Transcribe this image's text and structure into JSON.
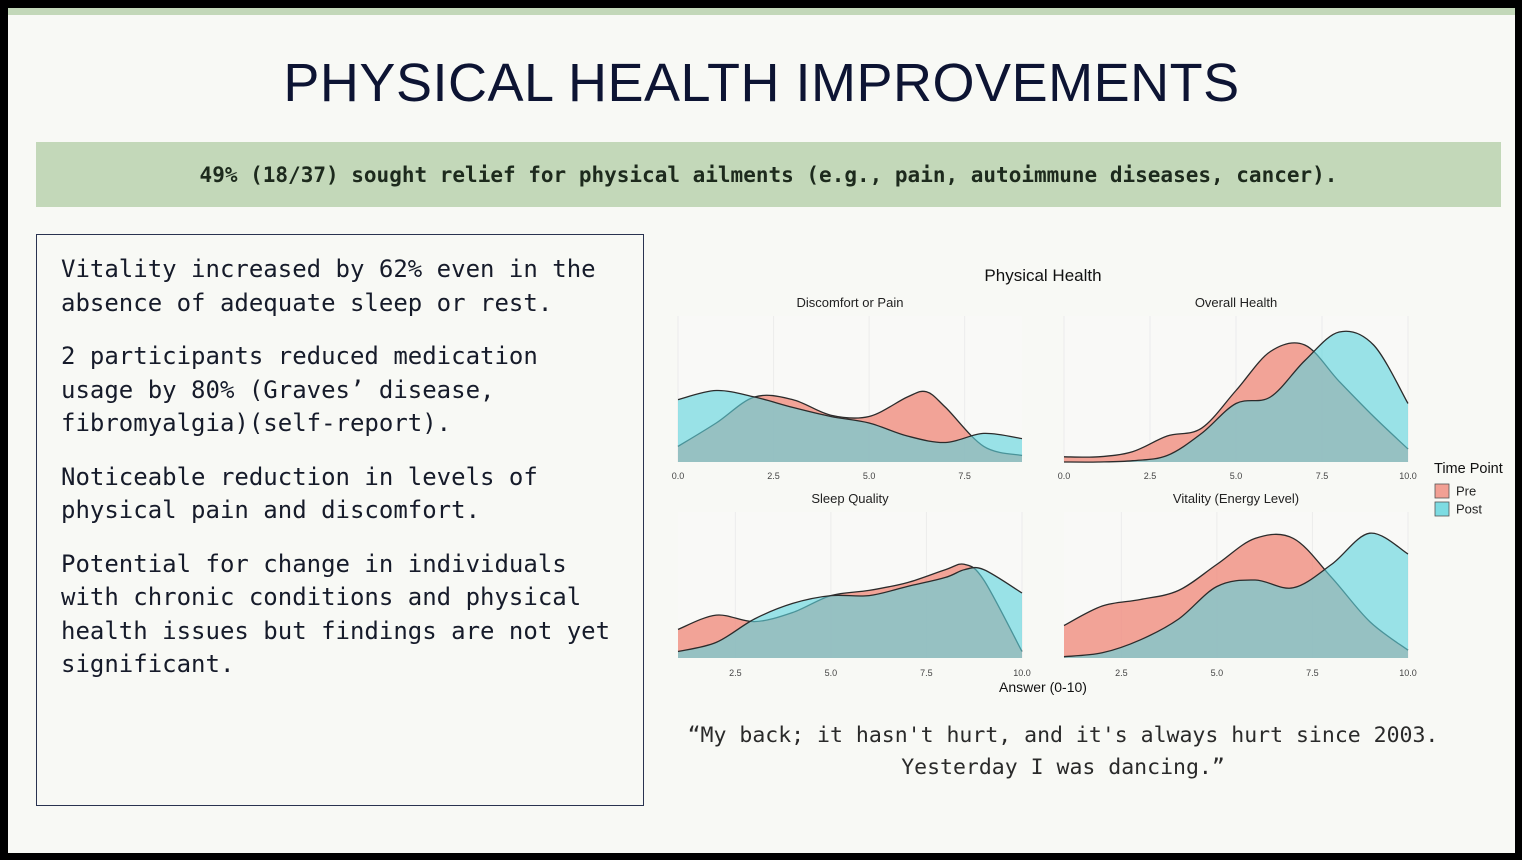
{
  "slide": {
    "title": "PHYSICAL HEALTH IMPROVEMENTS",
    "banner": "49% (18/37) sought relief for physical ailments (e.g., pain, autoimmune diseases, cancer).",
    "findings": [
      "Vitality increased by 62% even in the absence of adequate sleep or rest.",
      "2 participants reduced medication usage by 80% (Graves’ disease, fibromyalgia)(self-report).",
      "Noticeable reduction in levels of physical pain and discomfort.",
      "Potential for change in individuals with chronic conditions and physical health issues but findings are not yet significant."
    ],
    "quote": "“My back; it hasn't hurt, and it's always hurt since 2003. Yesterday I was dancing.”",
    "colors": {
      "accent_bar": "#c3d8b9",
      "title": "#0d1433"
    }
  },
  "chart_data": {
    "type": "area",
    "title": "Physical Health",
    "xlabel": "Answer (0-10)",
    "legend": {
      "title": "Time Point",
      "position": "right",
      "entries": [
        "Pre",
        "Post"
      ]
    },
    "series_colors": {
      "Pre": "#f08a7c",
      "Post": "#5ed4dd"
    },
    "grid": true,
    "panels": [
      {
        "title": "Discomfort or Pain",
        "xlim": [
          0,
          9
        ],
        "xticks": [
          "0.0",
          "2.5",
          "5.0",
          "7.5"
        ],
        "series": [
          {
            "name": "Pre",
            "x": [
              0,
              1,
              2,
              3,
              4,
              5,
              6,
              6.5,
              7,
              8,
              9
            ],
            "density": [
              0.12,
              0.3,
              0.5,
              0.48,
              0.36,
              0.35,
              0.5,
              0.54,
              0.42,
              0.12,
              0.05
            ]
          },
          {
            "name": "Post",
            "x": [
              0,
              1,
              2,
              3,
              4,
              5,
              6,
              7,
              8,
              9
            ],
            "density": [
              0.48,
              0.55,
              0.5,
              0.42,
              0.35,
              0.3,
              0.2,
              0.15,
              0.22,
              0.18
            ]
          }
        ]
      },
      {
        "title": "Overall Health",
        "xlim": [
          0,
          10
        ],
        "xticks": [
          "0.0",
          "2.5",
          "5.0",
          "7.5",
          "10.0"
        ],
        "series": [
          {
            "name": "Pre",
            "x": [
              0,
              1,
              2,
              3,
              4,
              5,
              6,
              7,
              8,
              9,
              10
            ],
            "density": [
              0.04,
              0.04,
              0.08,
              0.2,
              0.26,
              0.55,
              0.85,
              0.9,
              0.62,
              0.35,
              0.1
            ]
          },
          {
            "name": "Post",
            "x": [
              0,
              1,
              2,
              3,
              4,
              5,
              6,
              7,
              8,
              9,
              10
            ],
            "density": [
              0.0,
              0.0,
              0.01,
              0.05,
              0.22,
              0.45,
              0.5,
              0.78,
              1.0,
              0.9,
              0.45
            ]
          }
        ]
      },
      {
        "title": "Sleep Quality",
        "xlim": [
          1,
          10
        ],
        "xticks": [
          "2.5",
          "5.0",
          "7.5",
          "10.0"
        ],
        "series": [
          {
            "name": "Pre",
            "x": [
              1,
              2,
              3,
              4,
              5,
              6,
              7,
              8,
              8.5,
              9,
              10
            ],
            "density": [
              0.22,
              0.33,
              0.28,
              0.35,
              0.48,
              0.52,
              0.58,
              0.68,
              0.72,
              0.6,
              0.05
            ]
          },
          {
            "name": "Post",
            "x": [
              1,
              2,
              3,
              4,
              5,
              6,
              7,
              8,
              8.5,
              9,
              10
            ],
            "density": [
              0.05,
              0.12,
              0.3,
              0.42,
              0.48,
              0.48,
              0.55,
              0.62,
              0.68,
              0.68,
              0.5
            ]
          }
        ]
      },
      {
        "title": "Vitality (Energy Level)",
        "xlim": [
          1,
          10
        ],
        "xticks": [
          "2.5",
          "5.0",
          "7.5",
          "10.0"
        ],
        "series": [
          {
            "name": "Pre",
            "x": [
              1,
              2,
              3,
              4,
              5,
              6,
              7,
              8,
              9,
              10
            ],
            "density": [
              0.25,
              0.4,
              0.45,
              0.52,
              0.72,
              0.92,
              0.92,
              0.62,
              0.28,
              0.06
            ]
          },
          {
            "name": "Post",
            "x": [
              1,
              2,
              3,
              4,
              5,
              6,
              7,
              8,
              9,
              10
            ],
            "density": [
              0.01,
              0.04,
              0.14,
              0.3,
              0.55,
              0.6,
              0.54,
              0.72,
              0.96,
              0.8
            ]
          }
        ]
      }
    ]
  }
}
